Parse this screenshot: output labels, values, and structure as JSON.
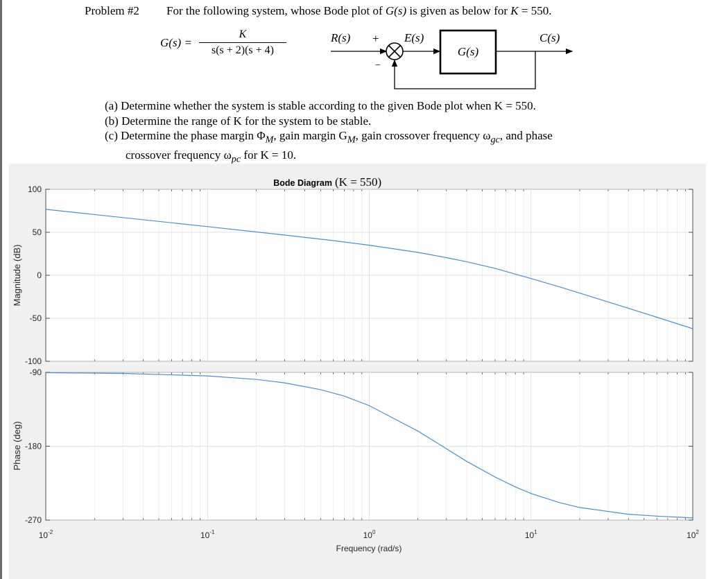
{
  "header": {
    "problem_label": "Problem #2",
    "statement_prefix": "For the following system, whose Bode plot of ",
    "statement_func": "G(s)",
    "statement_mid": " is given as below for ",
    "statement_var": "K",
    "statement_suffix": " = 550."
  },
  "transfer_function": {
    "lhs": "G(s) =",
    "numerator": "K",
    "denominator": "s(s + 2)(s + 4)"
  },
  "block_diagram": {
    "input_label": "R(s)",
    "plus_sign": "+",
    "minus_sign": "−",
    "error_label": "E(s)",
    "block_label": "G(s)",
    "output_label": "C(s)"
  },
  "questions": [
    {
      "label": "(a)",
      "text": "Determine whether the system is stable according to the given Bode plot when K = 550."
    },
    {
      "label": "(b)",
      "text": "Determine the range of K for the system to be stable."
    },
    {
      "label": "(c)",
      "text": "Determine the phase margin Φ",
      "text_sub1": "M",
      "text_mid1": ", gain margin G",
      "text_sub2": "M",
      "text_mid2": ", gain crossover frequency ω",
      "text_sub3": "gc",
      "text_end": ", and phase"
    },
    {
      "label": "",
      "text": "crossover frequency ω",
      "text_sub": "pc",
      "text_end": " for K = 10."
    }
  ],
  "chart_data": [
    {
      "type": "line",
      "title_prefix": "Bode Diagram",
      "title_math": "(K = 550)",
      "xlabel": "",
      "ylabel": "Magnitude (dB)",
      "xscale": "log",
      "xlim": [
        0.01,
        100
      ],
      "ylim": [
        -100,
        100
      ],
      "yticks": [
        -100,
        -50,
        0,
        50,
        100
      ],
      "grid": true,
      "series": [
        {
          "x": [
            0.01,
            0.03,
            0.1,
            0.3,
            0.6,
            1,
            2,
            3,
            4,
            6,
            8,
            10,
            15,
            20,
            40,
            60,
            100
          ],
          "y": [
            76.7,
            67.1,
            56.6,
            46.8,
            40.3,
            35.0,
            26.6,
            20.5,
            15.8,
            8.0,
            1.4,
            -3.8,
            -13.5,
            -20.7,
            -38.4,
            -48.8,
            -62.1
          ],
          "color": "#4a8fcd"
        }
      ]
    },
    {
      "type": "line",
      "xlabel": "Frequency (rad/s)",
      "ylabel": "Phase (deg)",
      "xscale": "log",
      "xlim": [
        0.01,
        100
      ],
      "xticks": [
        0.01,
        0.1,
        1,
        10,
        100
      ],
      "xtick_bases": [
        "10",
        "10",
        "10",
        "10",
        "10"
      ],
      "xtick_exps": [
        "-2",
        "-1",
        "0",
        "1",
        "2"
      ],
      "ylim": [
        -270,
        -90
      ],
      "yticks": [
        -270,
        -180,
        -90
      ],
      "grid": true,
      "series": [
        {
          "x": [
            0.01,
            0.03,
            0.1,
            0.2,
            0.3,
            0.5,
            0.7,
            1,
            1.5,
            2,
            2.83,
            4,
            6,
            8,
            10,
            15,
            20,
            40,
            60,
            100
          ],
          "y": [
            -90.4,
            -91.3,
            -94.3,
            -98.6,
            -102.8,
            -111.0,
            -118.9,
            -130.6,
            -148.7,
            -161.6,
            -180.0,
            -198.4,
            -217.6,
            -229.6,
            -237.6,
            -248.7,
            -254.7,
            -262.9,
            -265.2,
            -267.4
          ],
          "color": "#4a8fcd"
        }
      ]
    }
  ]
}
